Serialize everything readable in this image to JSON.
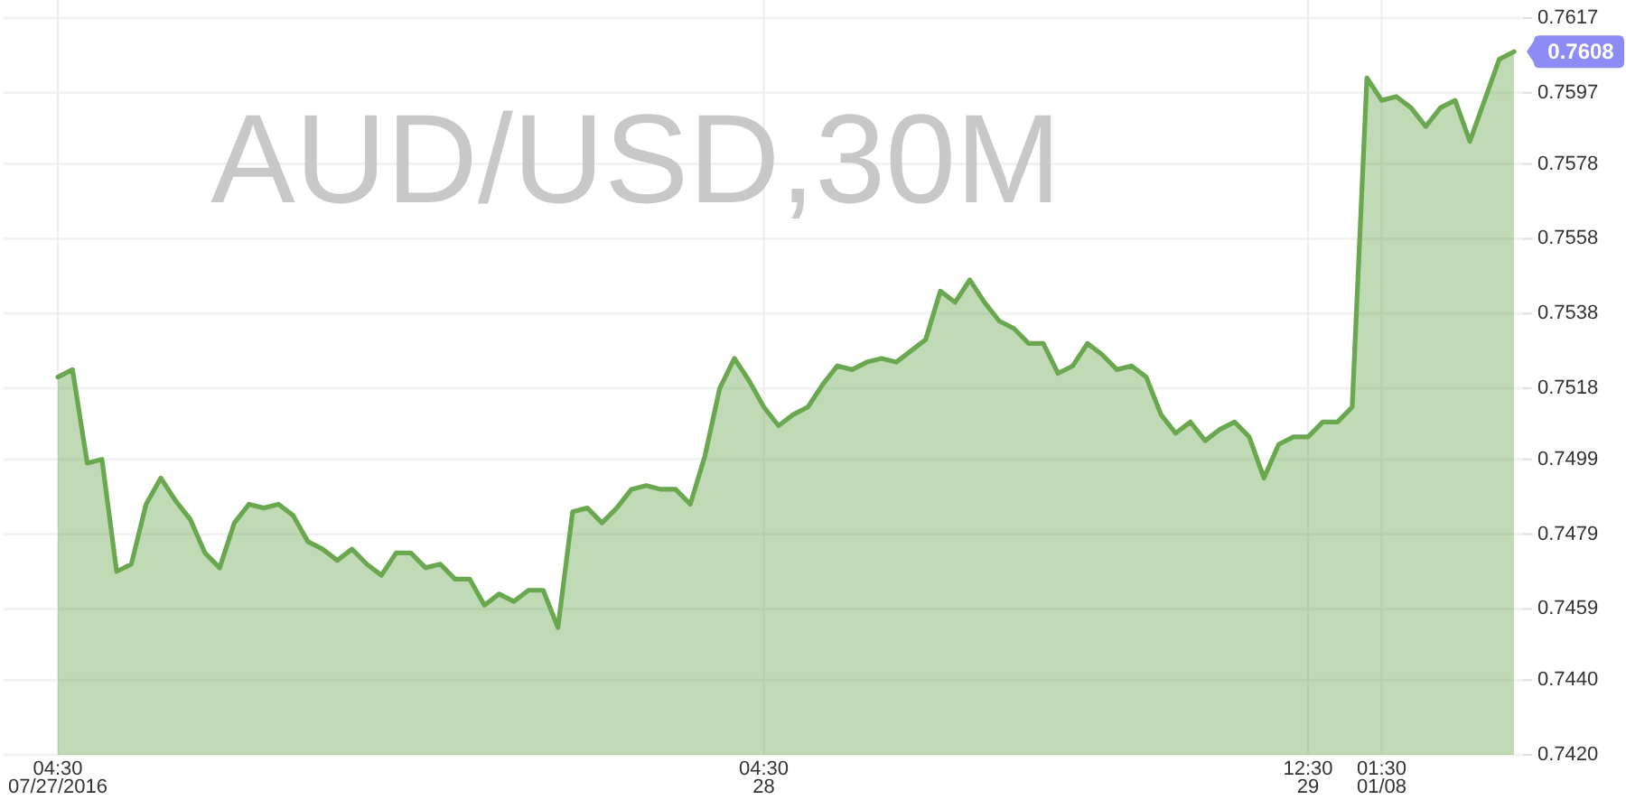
{
  "chart_data": {
    "type": "area",
    "title": "AUD/USD,30M",
    "categories": [
      "04:30\n07/27/2016",
      null,
      null,
      null,
      null,
      null,
      null,
      null,
      null,
      null,
      null,
      null,
      null,
      null,
      null,
      null,
      null,
      null,
      null,
      null,
      null,
      null,
      null,
      null,
      null,
      null,
      null,
      null,
      null,
      null,
      null,
      null,
      null,
      null,
      null,
      null,
      null,
      null,
      null,
      null,
      null,
      null,
      null,
      null,
      null,
      null,
      null,
      null,
      "04:30\n28",
      null,
      null,
      null,
      null,
      null,
      null,
      null,
      null,
      null,
      null,
      null,
      null,
      null,
      null,
      null,
      null,
      null,
      null,
      null,
      null,
      null,
      null,
      null,
      null,
      null,
      null,
      null,
      null,
      null,
      null,
      null,
      null,
      null,
      null,
      null,
      null,
      "12:30\n29",
      null,
      null,
      null,
      null,
      "01:30\n01/08",
      null,
      null,
      null,
      null,
      null,
      null,
      null,
      null,
      null
    ],
    "values": [
      0.7521,
      0.7523,
      0.7498,
      0.7499,
      0.7469,
      0.7471,
      0.7487,
      0.7494,
      0.7488,
      0.7483,
      0.7474,
      0.747,
      0.7482,
      0.7487,
      0.7486,
      0.7487,
      0.7484,
      0.7477,
      0.7475,
      0.7472,
      0.7475,
      0.7471,
      0.7468,
      0.7474,
      0.7474,
      0.747,
      0.7471,
      0.7467,
      0.7467,
      0.746,
      0.7463,
      0.7461,
      0.7464,
      0.7464,
      0.7454,
      0.7485,
      0.7486,
      0.7482,
      0.7486,
      0.7491,
      0.7492,
      0.7491,
      0.7491,
      0.7487,
      0.75,
      0.7518,
      0.7526,
      0.752,
      0.7513,
      0.7508,
      0.7511,
      0.7513,
      0.7519,
      0.7524,
      0.7523,
      0.7525,
      0.7526,
      0.7525,
      0.7528,
      0.7531,
      0.7544,
      0.7541,
      0.7547,
      0.7541,
      0.7536,
      0.7534,
      0.753,
      0.753,
      0.7522,
      0.7524,
      0.753,
      0.7527,
      0.7523,
      0.7524,
      0.7521,
      0.7511,
      0.7506,
      0.7509,
      0.7504,
      0.7507,
      0.7509,
      0.7505,
      0.7494,
      0.7503,
      0.7505,
      0.7505,
      0.7509,
      0.7509,
      0.7513,
      0.7601,
      0.7595,
      0.7596,
      0.7593,
      0.7588,
      0.7593,
      0.7595,
      0.7584,
      0.7595,
      0.7606,
      0.7608
    ],
    "color": "#6aa84f",
    "ylim": [
      0.742,
      0.7617
    ],
    "yticks": [
      {
        "value": 0.742,
        "label": "0.7420"
      },
      {
        "value": 0.744,
        "label": "0.7440"
      },
      0.7459,
      0.7479,
      0.7499,
      0.7518,
      0.7538,
      0.7558,
      0.7578,
      0.7597,
      0.7617
    ],
    "grid": true,
    "annotations": [
      "0.7608"
    ]
  }
}
